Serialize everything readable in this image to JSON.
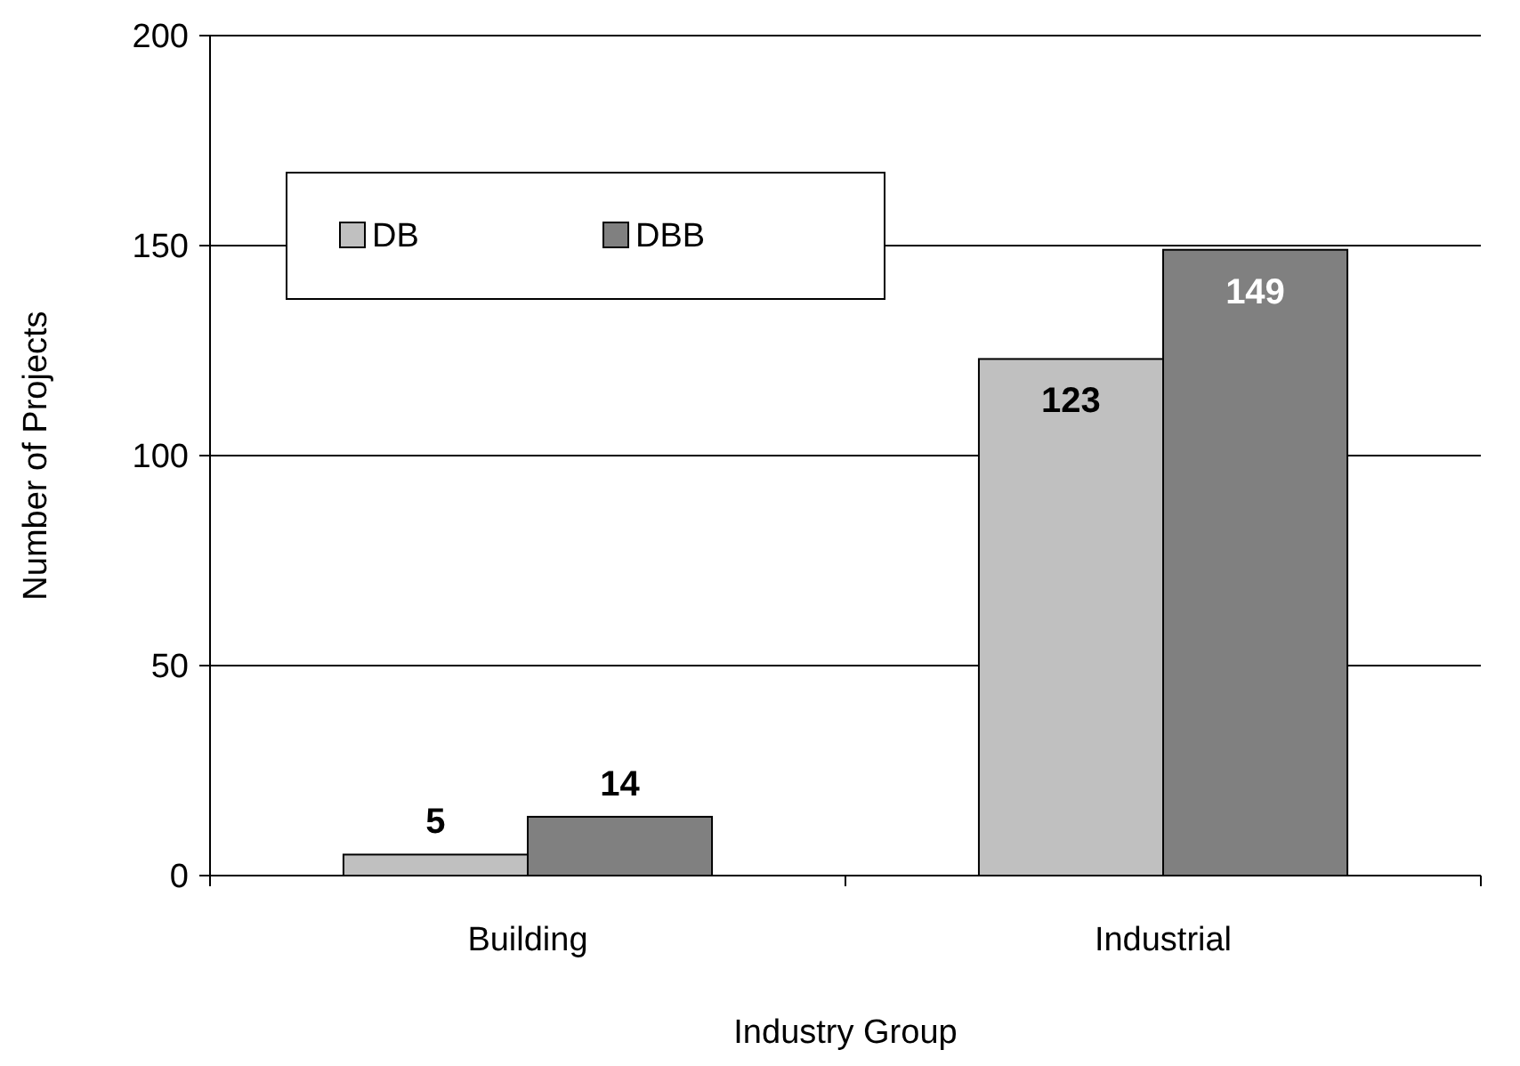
{
  "chart_data": {
    "type": "bar",
    "xlabel": "Industry Group",
    "ylabel": "Number of Projects",
    "categories": [
      "Building",
      "Industrial"
    ],
    "series": [
      {
        "name": "DB",
        "color": "#c0c0c0",
        "values": [
          5,
          123
        ]
      },
      {
        "name": "DBB",
        "color": "#808080",
        "values": [
          14,
          149
        ]
      }
    ],
    "ylim": [
      0,
      200
    ],
    "yticks": [
      0,
      50,
      100,
      150,
      200
    ],
    "grid": "y",
    "legend": "top left",
    "data_labels": true
  }
}
